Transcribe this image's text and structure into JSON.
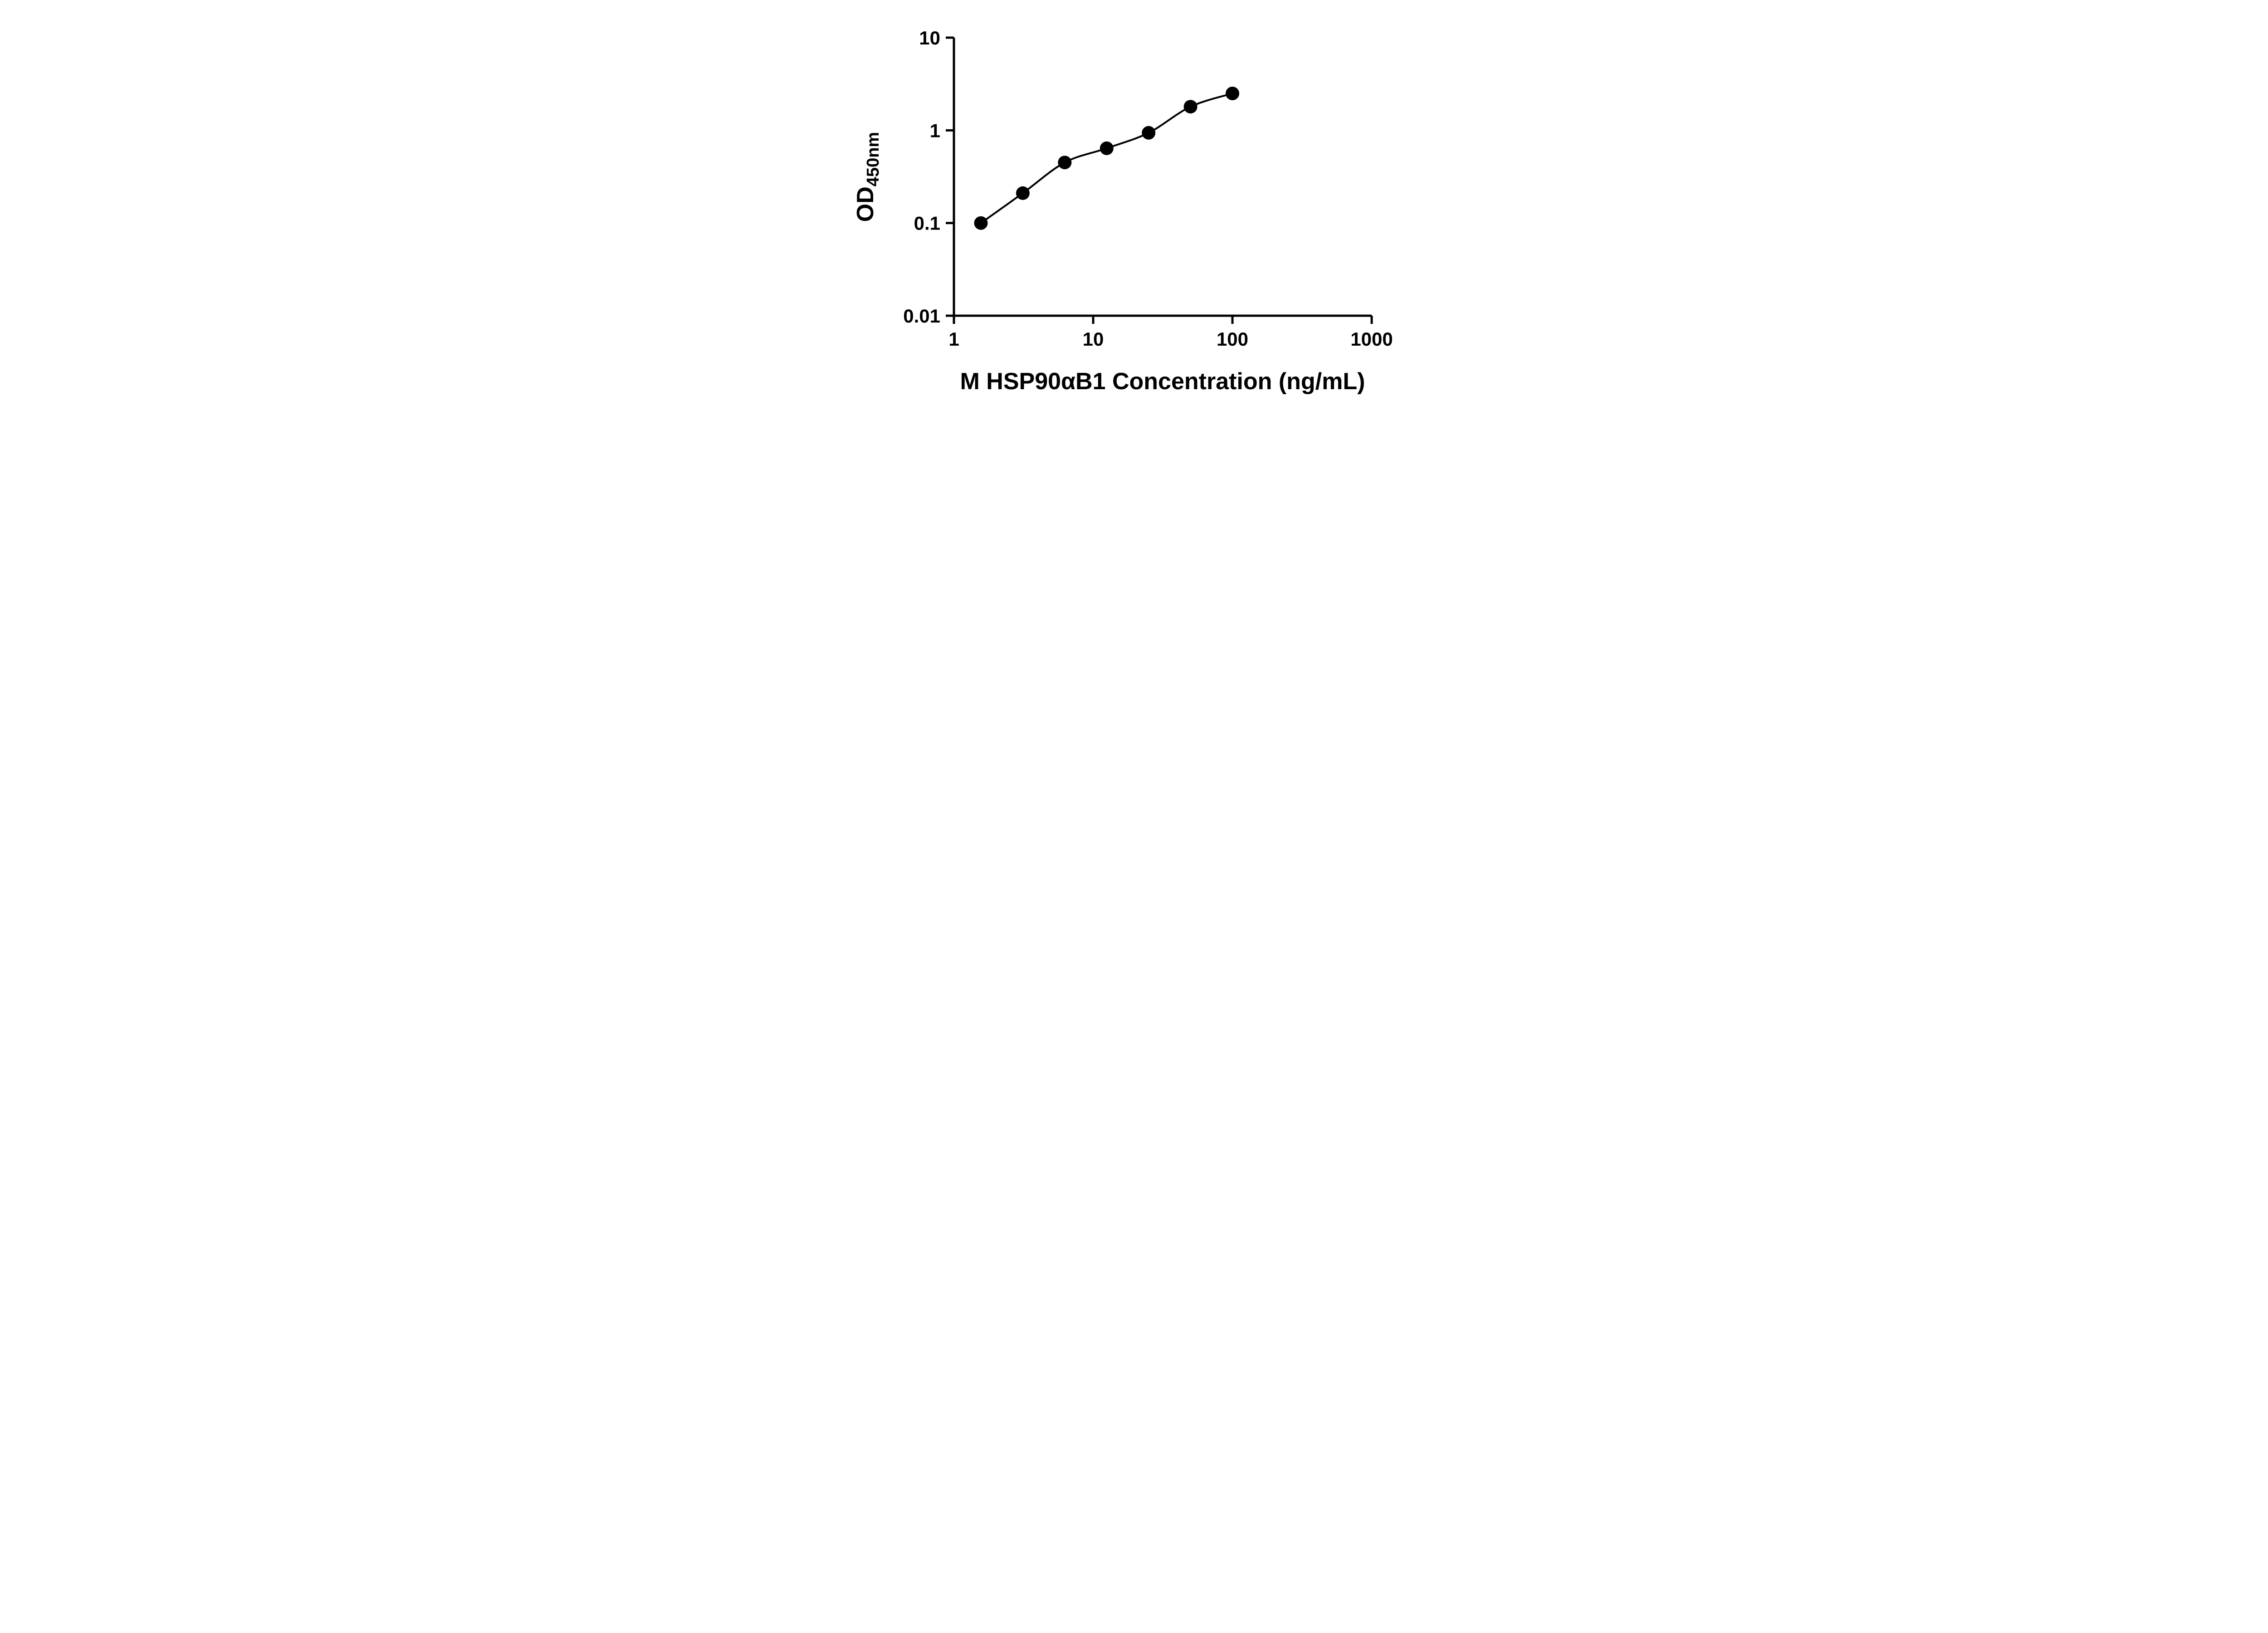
{
  "chart_data": {
    "type": "scatter",
    "title": "",
    "xlabel": "M HSP90αB1 Concentration (ng/mL)",
    "ylabel_main": "OD",
    "ylabel_sub": "450nm",
    "x_scale": "log",
    "y_scale": "log",
    "xlim": [
      1,
      1000
    ],
    "ylim": [
      0.01,
      10
    ],
    "x_ticks": [
      1,
      10,
      100,
      1000
    ],
    "x_tick_labels": [
      "1",
      "10",
      "100",
      "1000"
    ],
    "y_ticks": [
      0.01,
      0.1,
      1,
      10
    ],
    "y_tick_labels": [
      "0.01",
      "0.1",
      "1",
      "10"
    ],
    "grid": false,
    "legend_position": "none",
    "line_color": "#000000",
    "marker_color": "#000000",
    "series": [
      {
        "marker": "circle",
        "fit_line": true,
        "points": [
          {
            "x": 1.5625,
            "y": 0.1
          },
          {
            "x": 3.125,
            "y": 0.21
          },
          {
            "x": 6.25,
            "y": 0.45
          },
          {
            "x": 12.5,
            "y": 0.64
          },
          {
            "x": 25,
            "y": 0.94
          },
          {
            "x": 50,
            "y": 1.8
          },
          {
            "x": 100,
            "y": 2.5
          }
        ]
      }
    ]
  }
}
